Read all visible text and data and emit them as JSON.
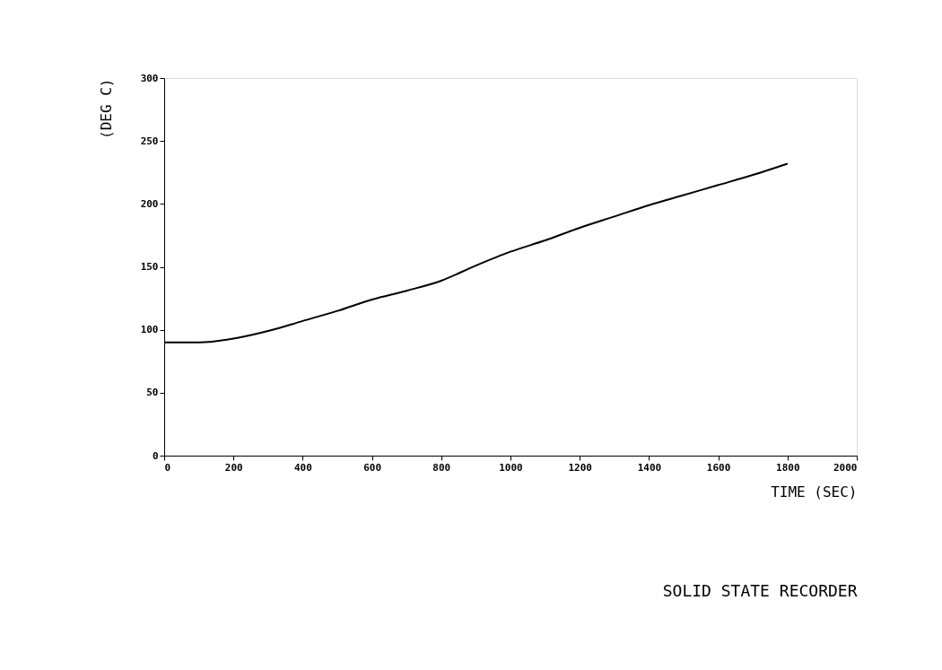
{
  "chart_data": {
    "type": "line",
    "title": "SOLID STATE RECORDER",
    "xlabel": "TIME (SEC)",
    "ylabel": "(DEG C)",
    "x": [
      0,
      100,
      200,
      300,
      400,
      500,
      600,
      700,
      800,
      900,
      1000,
      1100,
      1200,
      1300,
      1400,
      1500,
      1600,
      1700,
      1800
    ],
    "series": [
      {
        "color": "#000000",
        "values": [
          90,
          90,
          93,
          99,
          107,
          115,
          124,
          131,
          139,
          151,
          162,
          171,
          181,
          190,
          199,
          207,
          215,
          223,
          232
        ]
      }
    ],
    "xlim": [
      0,
      2000
    ],
    "xticks": [
      0,
      200,
      400,
      600,
      800,
      1000,
      1200,
      1400,
      1600,
      1800,
      2000
    ],
    "ylim": [
      0,
      300
    ],
    "yticks": [
      0,
      50,
      100,
      150,
      200,
      250,
      300
    ],
    "grid": false,
    "legend": false,
    "marker": "none",
    "line_style": "solid"
  }
}
